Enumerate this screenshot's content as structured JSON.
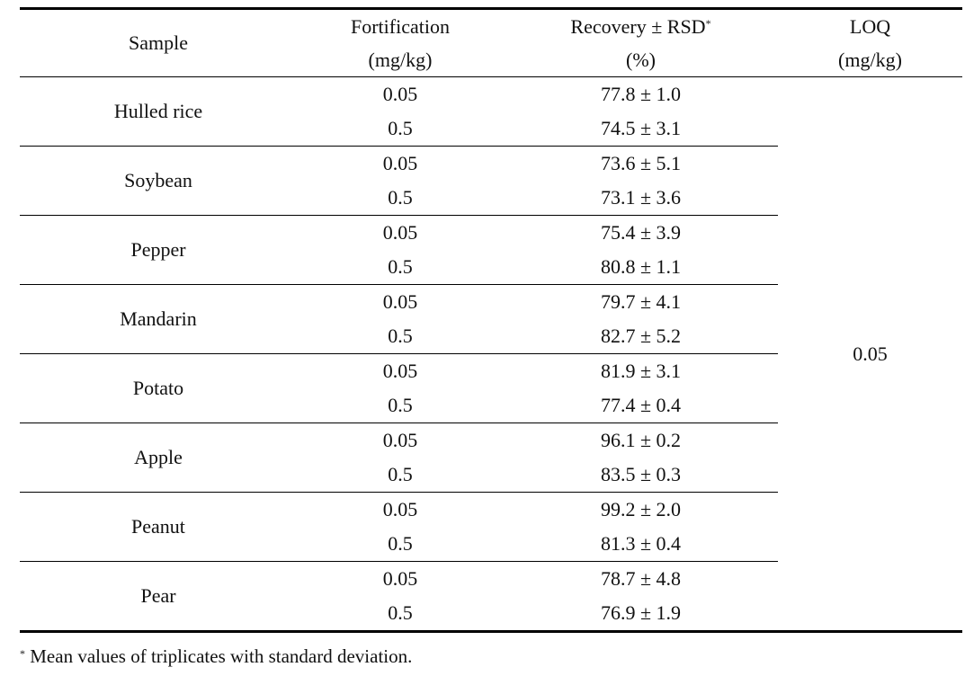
{
  "table": {
    "header": {
      "sample": "Sample",
      "fortification": "Fortification",
      "fortification_unit": "(mg/kg)",
      "recovery": "Recovery ± RSD",
      "recovery_mark": "*",
      "recovery_unit": "(%)",
      "loq": "LOQ",
      "loq_unit": "(mg/kg)"
    },
    "rows": [
      {
        "sample": "Hulled rice",
        "levels": [
          {
            "fortification": 0.05,
            "recovery": "77.8 ± 1.0"
          },
          {
            "fortification": 0.5,
            "recovery": "74.5 ± 3.1"
          }
        ]
      },
      {
        "sample": "Soybean",
        "levels": [
          {
            "fortification": 0.05,
            "recovery": "73.6 ± 5.1"
          },
          {
            "fortification": 0.5,
            "recovery": "73.1 ± 3.6"
          }
        ]
      },
      {
        "sample": "Pepper",
        "levels": [
          {
            "fortification": 0.05,
            "recovery": "75.4 ± 3.9"
          },
          {
            "fortification": 0.5,
            "recovery": "80.8 ± 1.1"
          }
        ]
      },
      {
        "sample": "Mandarin",
        "levels": [
          {
            "fortification": 0.05,
            "recovery": "79.7 ± 4.1"
          },
          {
            "fortification": 0.5,
            "recovery": "82.7 ± 5.2"
          }
        ]
      },
      {
        "sample": "Potato",
        "levels": [
          {
            "fortification": 0.05,
            "recovery": "81.9 ± 3.1"
          },
          {
            "fortification": 0.5,
            "recovery": "77.4 ± 0.4"
          }
        ]
      },
      {
        "sample": "Apple",
        "levels": [
          {
            "fortification": 0.05,
            "recovery": "96.1 ± 0.2"
          },
          {
            "fortification": 0.5,
            "recovery": "83.5 ± 0.3"
          }
        ]
      },
      {
        "sample": "Peanut",
        "levels": [
          {
            "fortification": 0.05,
            "recovery": "99.2 ± 2.0"
          },
          {
            "fortification": 0.5,
            "recovery": "81.3 ± 0.4"
          }
        ]
      },
      {
        "sample": "Pear",
        "levels": [
          {
            "fortification": 0.05,
            "recovery": "78.7 ± 4.8"
          },
          {
            "fortification": 0.5,
            "recovery": "76.9 ± 1.9"
          }
        ]
      }
    ],
    "loq": 0.05,
    "footnote": {
      "mark": "*",
      "text": "Mean values of triplicates with standard deviation."
    }
  }
}
